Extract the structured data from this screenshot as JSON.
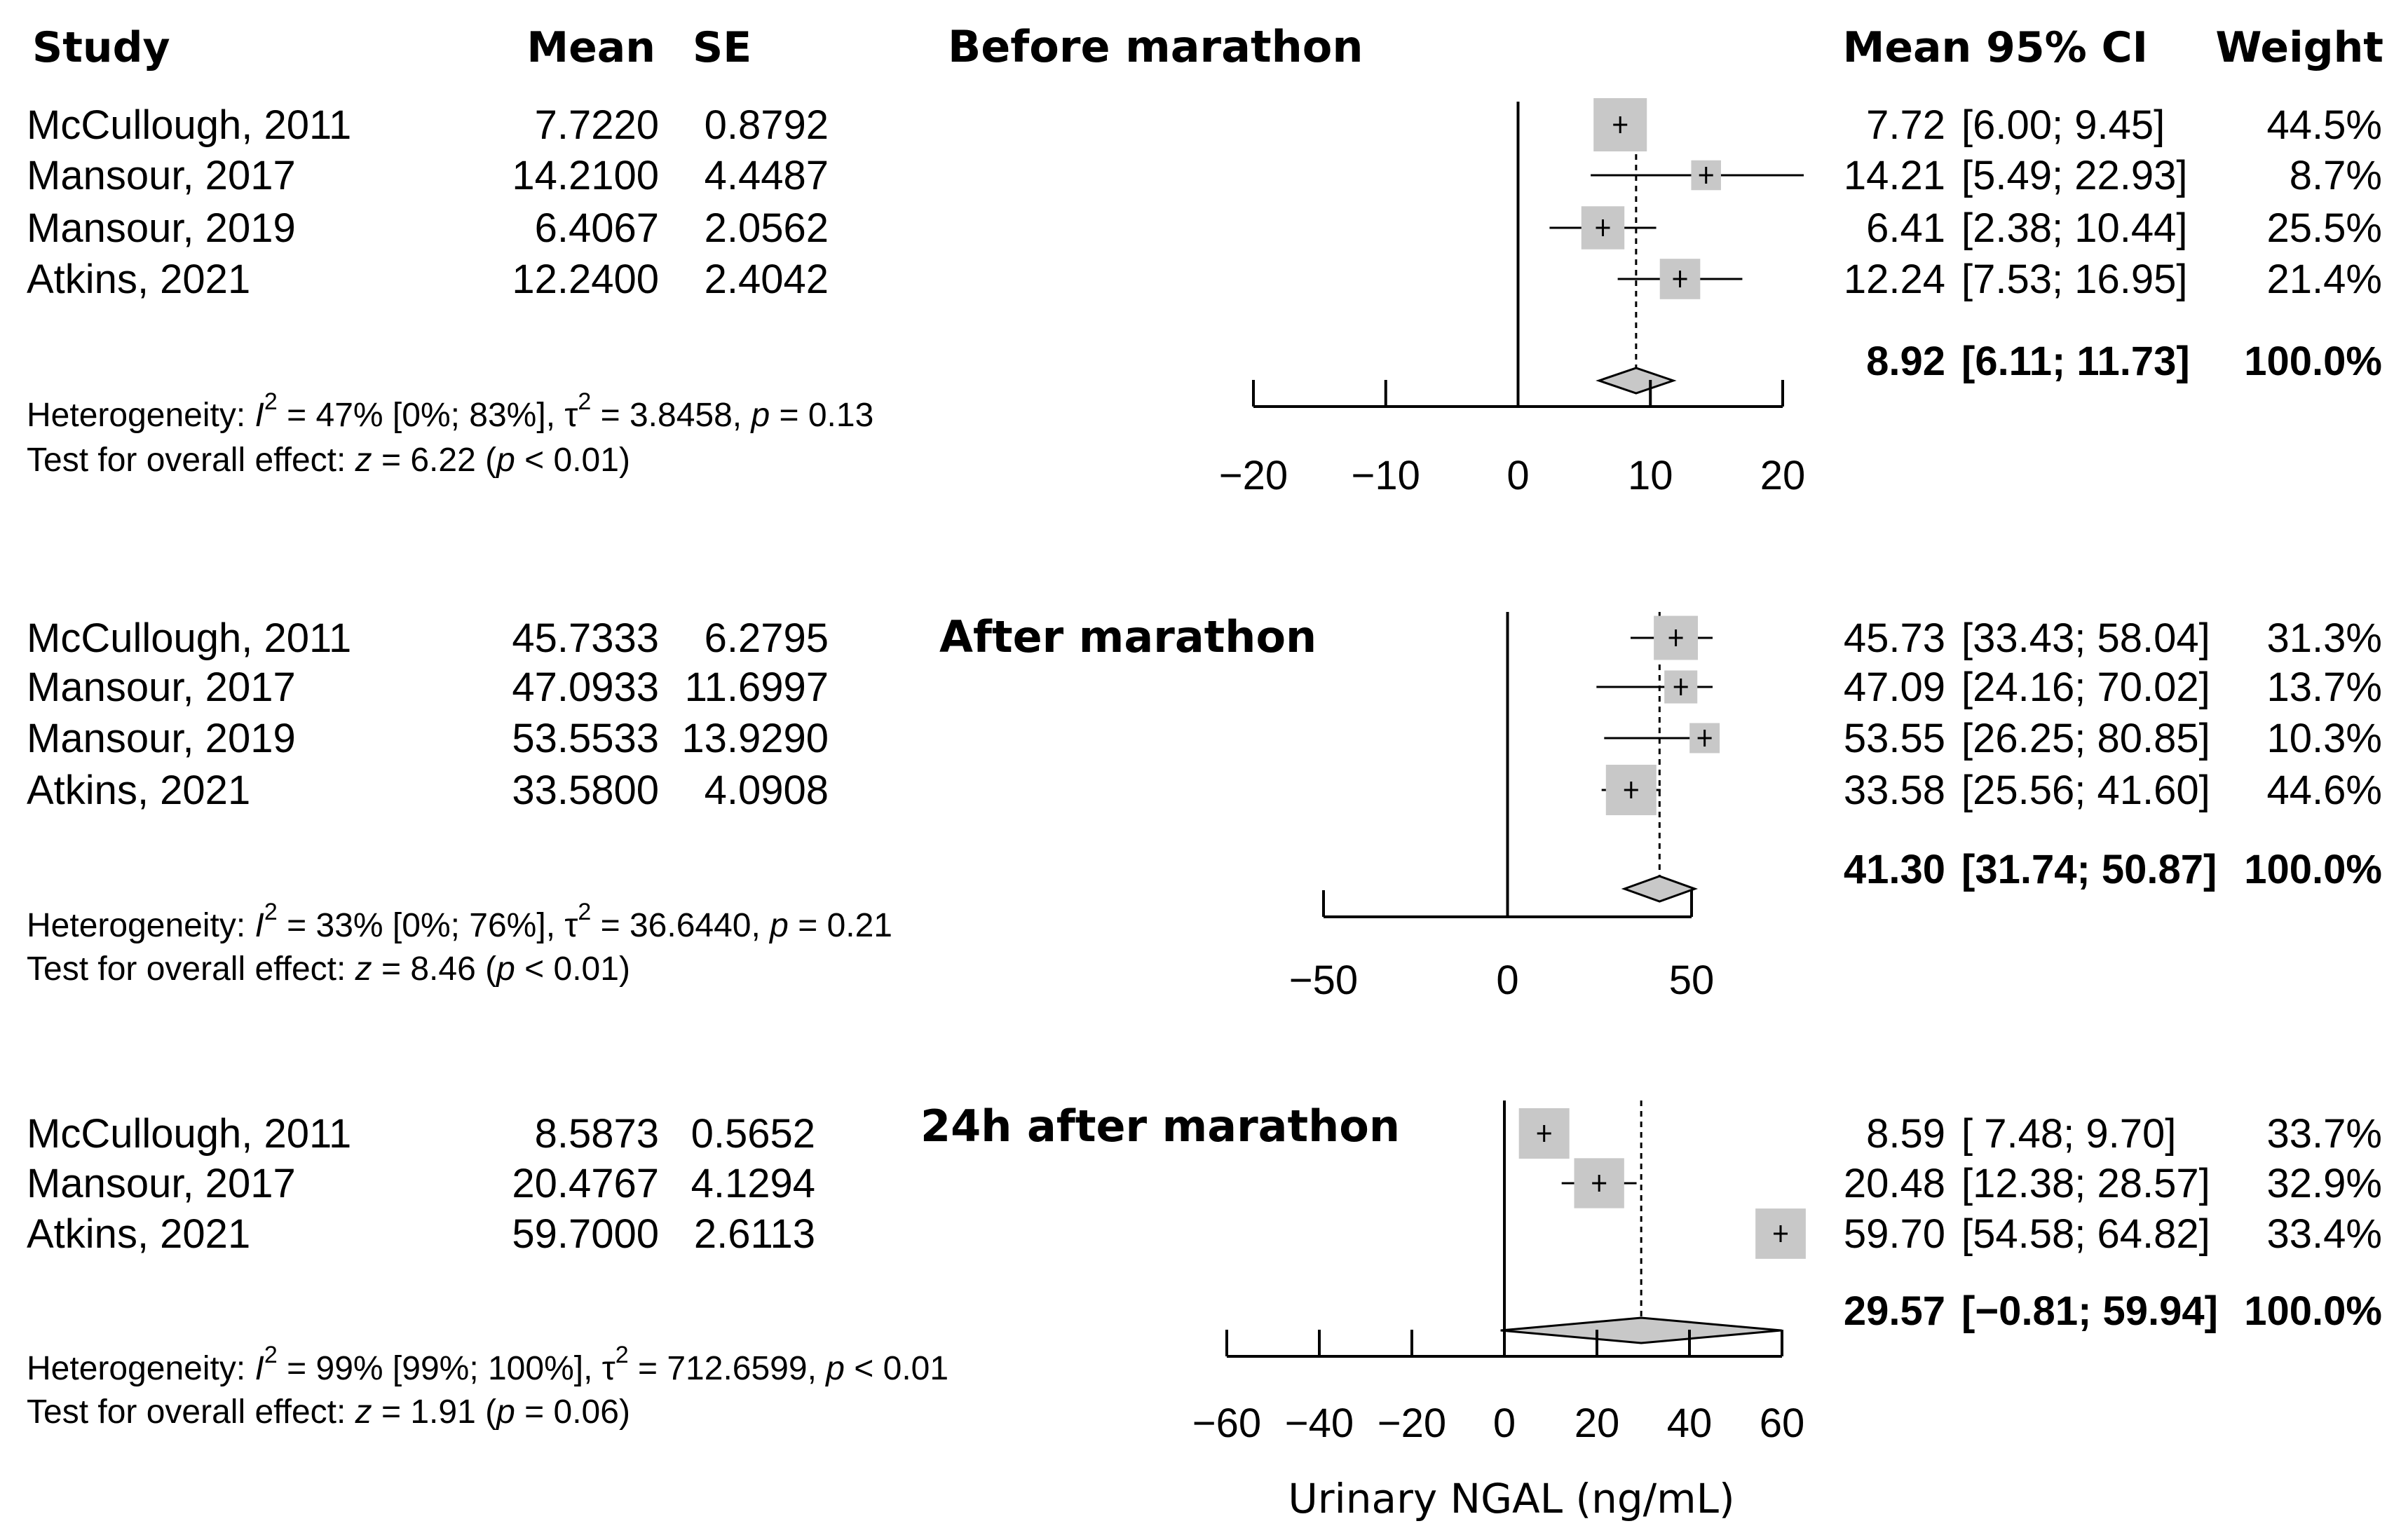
{
  "headers": {
    "study": "Study",
    "mean": "Mean",
    "se": "SE",
    "ci": "Mean 95% CI",
    "weight": "Weight"
  },
  "chart_data": [
    {
      "type": "forest",
      "title": "Before marathon",
      "xlim": [
        -20,
        20
      ],
      "ticks": [
        -20,
        -10,
        0,
        10,
        20
      ],
      "tick_labels": [
        "−20",
        "−10",
        "0",
        "10",
        "20"
      ],
      "studies": [
        {
          "name": "McCullough, 2011",
          "mean": 7.722,
          "mean_text": "7.7220",
          "se_text": "0.8792",
          "est": 7.72,
          "lo": 6.0,
          "hi": 9.45,
          "est_text": "7.72",
          "ci_text": "[6.00;  9.45]",
          "weight": 44.5,
          "weight_text": "44.5%"
        },
        {
          "name": "Mansour, 2017",
          "mean": 14.21,
          "mean_text": "14.2100",
          "se_text": "4.4487",
          "est": 14.21,
          "lo": 5.49,
          "hi": 22.93,
          "est_text": "14.21",
          "ci_text": "[5.49; 22.93]",
          "weight": 8.7,
          "weight_text": "8.7%"
        },
        {
          "name": "Mansour, 2019",
          "mean": 6.4067,
          "mean_text": "6.4067",
          "se_text": "2.0562",
          "est": 6.41,
          "lo": 2.38,
          "hi": 10.44,
          "est_text": "6.41",
          "ci_text": "[2.38; 10.44]",
          "weight": 25.5,
          "weight_text": "25.5%"
        },
        {
          "name": "Atkins, 2021",
          "mean": 12.24,
          "mean_text": "12.2400",
          "se_text": "2.4042",
          "est": 12.24,
          "lo": 7.53,
          "hi": 16.95,
          "est_text": "12.24",
          "ci_text": "[7.53; 16.95]",
          "weight": 21.4,
          "weight_text": "21.4%"
        }
      ],
      "summary": {
        "est": 8.92,
        "lo": 6.11,
        "hi": 11.73,
        "est_text": "8.92",
        "ci_text": "[6.11; 11.73]",
        "weight_text": "100.0%"
      },
      "heterogeneity": {
        "label": "Heterogeneity: ",
        "i2_symbol": "I",
        "i2_sup": "2",
        "i2_text": " = 47% [0%; 83%], ",
        "tau_symbol": "τ",
        "tau_sup": "2",
        "tau_text": " = 3.8458, ",
        "p_symbol": "p",
        "p_text": " = 0.13"
      },
      "overall": {
        "label": "Test for overall effect: ",
        "z_symbol": "z",
        "z_text": " = 6.22 (",
        "p_symbol": "p",
        "p_text": " < 0.01)"
      }
    },
    {
      "type": "forest",
      "title": "After marathon",
      "xlim": [
        -50,
        50
      ],
      "ticks": [
        -50,
        0,
        50
      ],
      "tick_labels": [
        "−50",
        "0",
        "50"
      ],
      "studies": [
        {
          "name": "McCullough, 2011",
          "mean": 45.7333,
          "mean_text": "45.7333",
          "se_text": "6.2795",
          "est": 45.73,
          "lo": 33.43,
          "hi": 58.04,
          "est_text": "45.73",
          "ci_text": "[33.43; 58.04]",
          "weight": 31.3,
          "weight_text": "31.3%"
        },
        {
          "name": "Mansour, 2017",
          "mean": 47.0933,
          "mean_text": "47.0933",
          "se_text": "11.6997",
          "est": 47.09,
          "lo": 24.16,
          "hi": 70.02,
          "est_text": "47.09",
          "ci_text": "[24.16; 70.02]",
          "weight": 13.7,
          "weight_text": "13.7%"
        },
        {
          "name": "Mansour, 2019",
          "mean": 53.5533,
          "mean_text": "53.5533",
          "se_text": "13.9290",
          "est": 53.55,
          "lo": 26.25,
          "hi": 80.85,
          "est_text": "53.55",
          "ci_text": "[26.25; 80.85]",
          "weight": 10.3,
          "weight_text": "10.3%"
        },
        {
          "name": "Atkins, 2021",
          "mean": 33.58,
          "mean_text": "33.5800",
          "se_text": "4.0908",
          "est": 33.58,
          "lo": 25.56,
          "hi": 41.6,
          "est_text": "33.58",
          "ci_text": "[25.56; 41.60]",
          "weight": 44.6,
          "weight_text": "44.6%"
        }
      ],
      "summary": {
        "est": 41.3,
        "lo": 31.74,
        "hi": 50.87,
        "est_text": "41.30",
        "ci_text": "[31.74; 50.87]",
        "weight_text": "100.0%"
      },
      "heterogeneity": {
        "label": "Heterogeneity: ",
        "i2_symbol": "I",
        "i2_sup": "2",
        "i2_text": " = 33% [0%; 76%], ",
        "tau_symbol": "τ",
        "tau_sup": "2",
        "tau_text": " = 36.6440, ",
        "p_symbol": "p",
        "p_text": " = 0.21"
      },
      "overall": {
        "label": "Test for overall effect: ",
        "z_symbol": "z",
        "z_text": " = 8.46 (",
        "p_symbol": "p",
        "p_text": " < 0.01)"
      }
    },
    {
      "type": "forest",
      "title": "24h after marathon",
      "xlim": [
        -60,
        60
      ],
      "ticks": [
        -60,
        -40,
        -20,
        0,
        20,
        40,
        60
      ],
      "tick_labels": [
        "−60",
        "−40",
        "−20",
        "0",
        "20",
        "40",
        "60"
      ],
      "xlabel": "Urinary NGAL (ng/mL)",
      "studies": [
        {
          "name": "McCullough, 2011",
          "mean": 8.5873,
          "mean_text": "8.5873",
          "se_text": "0.5652",
          "est": 8.59,
          "lo": 7.48,
          "hi": 9.7,
          "est_text": "8.59",
          "ci_text": "[ 7.48;  9.70]",
          "weight": 33.7,
          "weight_text": "33.7%"
        },
        {
          "name": "Mansour, 2017",
          "mean": 20.4767,
          "mean_text": "20.4767",
          "se_text": "4.1294",
          "est": 20.48,
          "lo": 12.38,
          "hi": 28.57,
          "est_text": "20.48",
          "ci_text": "[12.38; 28.57]",
          "weight": 32.9,
          "weight_text": "32.9%"
        },
        {
          "name": "Atkins, 2021",
          "mean": 59.7,
          "mean_text": "59.7000",
          "se_text": "2.6113",
          "est": 59.7,
          "lo": 54.58,
          "hi": 64.82,
          "est_text": "59.70",
          "ci_text": "[54.58; 64.82]",
          "weight": 33.4,
          "weight_text": "33.4%"
        }
      ],
      "summary": {
        "est": 29.57,
        "lo": -0.81,
        "hi": 59.94,
        "est_text": "29.57",
        "ci_text": "[−0.81; 59.94]",
        "weight_text": "100.0%"
      },
      "heterogeneity": {
        "label": "Heterogeneity: ",
        "i2_symbol": "I",
        "i2_sup": "2",
        "i2_text": " = 99% [99%; 100%], ",
        "tau_symbol": "τ",
        "tau_sup": "2",
        "tau_text": " = 712.6599, ",
        "p_symbol": "p",
        "p_text": " < 0.01"
      },
      "overall": {
        "label": "Test for overall effect: ",
        "z_symbol": "z",
        "z_text": " = 1.91 (",
        "p_symbol": "p",
        "p_text": " = 0.06)"
      }
    }
  ]
}
